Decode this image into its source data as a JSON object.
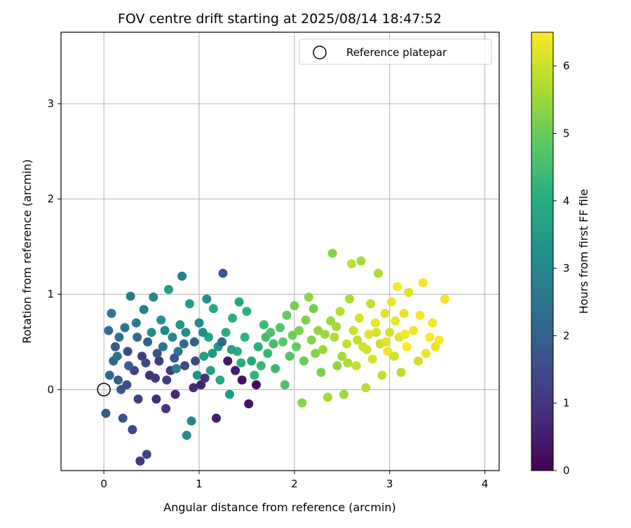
{
  "chart_data": {
    "type": "scatter",
    "title": "FOV centre drift starting at 2025/08/14 18:47:52",
    "xlabel": "Angular distance from reference (arcmin)",
    "ylabel": "Rotation from reference (arcmin)",
    "xlim": [
      -0.45,
      4.15
    ],
    "ylim": [
      -0.85,
      3.75
    ],
    "xticks": [
      "0",
      "1",
      "2",
      "3",
      "4"
    ],
    "xtick_values": [
      0,
      1,
      2,
      3,
      4
    ],
    "yticks": [
      "0",
      "1",
      "2",
      "3"
    ],
    "ytick_values": [
      0,
      1,
      2,
      3
    ],
    "grid": true,
    "legend": {
      "position": "top-right",
      "entries": [
        "Reference platepar"
      ]
    },
    "reference_point": {
      "x": 0,
      "y": 0,
      "marker": "open-circle"
    },
    "colorbar": {
      "label": "Hours from first FF file",
      "colormap": "viridis",
      "range": [
        0,
        6.5
      ],
      "ticks": [
        "0",
        "1",
        "2",
        "3",
        "4",
        "5",
        "6"
      ],
      "tick_values": [
        0,
        1,
        2,
        3,
        4,
        5,
        6
      ]
    },
    "series": [
      {
        "columns": [
          "x",
          "y",
          "hours"
        ],
        "points": [
          [
            0.02,
            -0.25,
            1.8
          ],
          [
            0.05,
            0.62,
            2.3
          ],
          [
            0.08,
            0.8,
            2.6
          ],
          [
            0.1,
            0.3,
            2.1
          ],
          [
            0.12,
            0.45,
            1.9
          ],
          [
            0.15,
            0.1,
            2.0
          ],
          [
            0.18,
            0.0,
            1.7
          ],
          [
            0.2,
            -0.3,
            1.6
          ],
          [
            0.22,
            0.65,
            2.4
          ],
          [
            0.25,
            0.4,
            1.5
          ],
          [
            0.28,
            0.98,
            2.7
          ],
          [
            0.3,
            -0.42,
            1.4
          ],
          [
            0.32,
            0.2,
            1.3
          ],
          [
            0.35,
            0.55,
            2.2
          ],
          [
            0.38,
            -0.75,
            1.1
          ],
          [
            0.4,
            0.35,
            1.2
          ],
          [
            0.42,
            0.84,
            2.8
          ],
          [
            0.45,
            -0.68,
            1.3
          ],
          [
            0.48,
            0.15,
            0.9
          ],
          [
            0.5,
            0.6,
            3.1
          ],
          [
            0.52,
            0.97,
            2.9
          ],
          [
            0.55,
            -0.1,
            0.8
          ],
          [
            0.58,
            0.3,
            1.1
          ],
          [
            0.6,
            0.73,
            3.3
          ],
          [
            0.62,
            0.45,
            2.5
          ],
          [
            0.65,
            -0.2,
            0.9
          ],
          [
            0.68,
            1.05,
            3.6
          ],
          [
            0.7,
            0.2,
            1.0
          ],
          [
            0.72,
            0.55,
            3.0
          ],
          [
            0.75,
            -0.05,
            0.7
          ],
          [
            0.78,
            0.4,
            2.6
          ],
          [
            0.8,
            0.68,
            3.4
          ],
          [
            0.82,
            1.19,
            2.8
          ],
          [
            0.85,
            0.25,
            1.5
          ],
          [
            0.87,
            -0.48,
            3.2
          ],
          [
            0.9,
            0.9,
            3.5
          ],
          [
            0.92,
            -0.33,
            2.9
          ],
          [
            0.95,
            0.5,
            2.0
          ],
          [
            0.98,
            0.15,
            3.3
          ],
          [
            1.0,
            0.7,
            3.0
          ],
          [
            1.02,
            0.05,
            0.6
          ],
          [
            1.05,
            0.35,
            3.7
          ],
          [
            1.08,
            0.95,
            3.2
          ],
          [
            1.1,
            0.55,
            3.8
          ],
          [
            1.12,
            0.2,
            3.6
          ],
          [
            1.15,
            0.85,
            3.9
          ],
          [
            1.18,
            -0.3,
            0.5
          ],
          [
            1.2,
            0.45,
            3.4
          ],
          [
            1.22,
            0.1,
            3.9
          ],
          [
            1.25,
            1.22,
            1.8
          ],
          [
            1.28,
            0.6,
            4.0
          ],
          [
            1.3,
            0.3,
            0.4
          ],
          [
            1.32,
            -0.05,
            3.5
          ],
          [
            1.35,
            0.75,
            4.1
          ],
          [
            1.38,
            0.2,
            0.5
          ],
          [
            1.4,
            0.4,
            4.0
          ],
          [
            1.42,
            0.92,
            3.8
          ],
          [
            1.45,
            0.1,
            0.3
          ],
          [
            1.48,
            0.55,
            4.2
          ],
          [
            1.5,
            0.82,
            4.1
          ],
          [
            1.52,
            -0.15,
            0.3
          ],
          [
            1.55,
            0.3,
            3.9
          ],
          [
            1.58,
            0.15,
            4.2
          ],
          [
            1.6,
            0.05,
            0.2
          ],
          [
            1.62,
            0.45,
            4.1
          ],
          [
            1.65,
            0.25,
            4.3
          ],
          [
            1.68,
            0.68,
            4.4
          ],
          [
            1.7,
            0.55,
            4.5
          ],
          [
            1.72,
            0.38,
            4.3
          ],
          [
            1.75,
            0.6,
            4.6
          ],
          [
            1.78,
            0.48,
            4.5
          ],
          [
            1.8,
            0.22,
            4.4
          ],
          [
            1.85,
            0.65,
            4.7
          ],
          [
            1.88,
            0.5,
            4.8
          ],
          [
            1.9,
            0.05,
            4.6
          ],
          [
            1.92,
            0.78,
            4.9
          ],
          [
            1.95,
            0.35,
            4.7
          ],
          [
            1.98,
            0.57,
            5.0
          ],
          [
            2.0,
            0.88,
            5.1
          ],
          [
            2.02,
            0.45,
            4.9
          ],
          [
            2.05,
            0.62,
            5.2
          ],
          [
            2.08,
            -0.14,
            5.3
          ],
          [
            2.1,
            0.3,
            5.0
          ],
          [
            2.12,
            0.73,
            5.2
          ],
          [
            2.15,
            0.97,
            5.4
          ],
          [
            2.18,
            0.52,
            5.3
          ],
          [
            2.2,
            0.85,
            5.1
          ],
          [
            2.25,
            0.62,
            5.4
          ],
          [
            2.28,
            0.18,
            5.2
          ],
          [
            2.3,
            0.42,
            5.5
          ],
          [
            2.35,
            -0.08,
            5.6
          ],
          [
            2.38,
            0.72,
            5.5
          ],
          [
            2.4,
            1.43,
            5.3
          ],
          [
            2.42,
            0.55,
            5.7
          ],
          [
            2.45,
            0.25,
            5.4
          ],
          [
            2.48,
            0.82,
            5.8
          ],
          [
            2.5,
            0.35,
            5.6
          ],
          [
            2.52,
            -0.05,
            5.5
          ],
          [
            2.55,
            0.48,
            5.9
          ],
          [
            2.58,
            0.95,
            5.7
          ],
          [
            2.6,
            1.32,
            5.8
          ],
          [
            2.62,
            0.62,
            6.0
          ],
          [
            2.65,
            0.25,
            5.9
          ],
          [
            2.68,
            0.75,
            6.1
          ],
          [
            2.7,
            1.35,
            5.6
          ],
          [
            2.72,
            0.45,
            6.0
          ],
          [
            2.75,
            0.02,
            5.8
          ],
          [
            2.78,
            0.58,
            6.2
          ],
          [
            2.8,
            0.9,
            5.9
          ],
          [
            2.82,
            0.32,
            6.1
          ],
          [
            2.85,
            0.7,
            6.3
          ],
          [
            2.88,
            1.22,
            5.7
          ],
          [
            2.9,
            0.48,
            6.0
          ],
          [
            2.92,
            0.15,
            5.9
          ],
          [
            2.95,
            0.8,
            6.2
          ],
          [
            2.98,
            0.4,
            6.4
          ],
          [
            3.0,
            0.6,
            6.1
          ],
          [
            3.02,
            0.92,
            6.3
          ],
          [
            3.05,
            0.35,
            6.0
          ],
          [
            3.08,
            1.08,
            6.4
          ],
          [
            3.1,
            0.55,
            6.2
          ],
          [
            3.12,
            0.18,
            5.8
          ],
          [
            3.15,
            0.8,
            6.3
          ],
          [
            3.18,
            0.45,
            6.5
          ],
          [
            3.2,
            1.02,
            6.2
          ],
          [
            3.25,
            0.62,
            6.4
          ],
          [
            3.3,
            0.3,
            6.0
          ],
          [
            3.32,
            0.78,
            6.5
          ],
          [
            3.35,
            1.12,
            6.4
          ],
          [
            3.38,
            0.38,
            6.3
          ],
          [
            3.42,
            0.55,
            6.5
          ],
          [
            3.45,
            0.7,
            6.4
          ],
          [
            3.48,
            0.45,
            6.3
          ],
          [
            3.52,
            0.52,
            6.5
          ],
          [
            3.58,
            0.95,
            6.4
          ],
          [
            0.06,
            0.15,
            2.2
          ],
          [
            0.14,
            0.35,
            2.5
          ],
          [
            0.24,
            0.05,
            1.6
          ],
          [
            0.34,
            0.7,
            2.7
          ],
          [
            0.44,
            0.28,
            1.4
          ],
          [
            0.54,
            0.12,
            1.0
          ],
          [
            0.64,
            0.62,
            2.9
          ],
          [
            0.74,
            0.33,
            1.7
          ],
          [
            0.84,
            0.48,
            2.3
          ],
          [
            0.94,
            0.02,
            0.8
          ],
          [
            1.04,
            0.6,
            3.1
          ],
          [
            1.14,
            0.38,
            3.5
          ],
          [
            1.24,
            0.5,
            2.1
          ],
          [
            1.34,
            0.42,
            3.7
          ],
          [
            1.44,
            0.28,
            4.0
          ],
          [
            0.16,
            0.55,
            2.4
          ],
          [
            0.26,
            0.25,
            1.9
          ],
          [
            0.36,
            -0.1,
            1.2
          ],
          [
            0.46,
            0.5,
            2.0
          ],
          [
            0.56,
            0.38,
            1.6
          ],
          [
            0.66,
            0.1,
            1.2
          ],
          [
            0.76,
            0.22,
            2.8
          ],
          [
            0.86,
            0.6,
            3.1
          ],
          [
            0.96,
            0.3,
            1.4
          ],
          [
            1.06,
            0.12,
            0.9
          ],
          [
            2.22,
            0.38,
            5.3
          ],
          [
            2.32,
            0.58,
            5.5
          ],
          [
            2.44,
            0.66,
            5.6
          ],
          [
            2.56,
            0.28,
            5.7
          ],
          [
            2.66,
            0.52,
            5.9
          ],
          [
            2.76,
            0.42,
            6.0
          ],
          [
            2.86,
            0.6,
            6.1
          ],
          [
            2.96,
            0.5,
            6.2
          ],
          [
            3.06,
            0.72,
            6.3
          ],
          [
            3.16,
            0.58,
            6.4
          ]
        ]
      }
    ]
  }
}
